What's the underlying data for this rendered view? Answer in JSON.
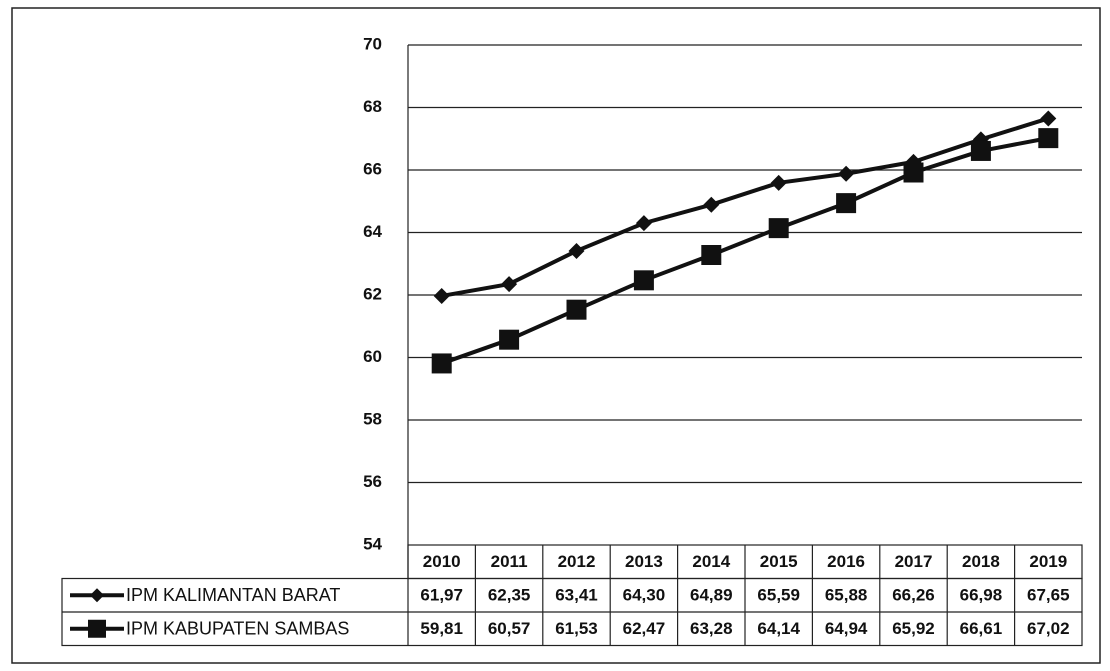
{
  "chart_data": {
    "type": "line",
    "categories": [
      "2010",
      "2011",
      "2012",
      "2013",
      "2014",
      "2015",
      "2016",
      "2017",
      "2018",
      "2019"
    ],
    "series": [
      {
        "name": "IPM KALIMANTAN BARAT",
        "color": "#111111",
        "marker": "diamond",
        "values": [
          61.97,
          62.35,
          63.41,
          64.3,
          64.89,
          65.59,
          65.88,
          66.26,
          66.98,
          67.65
        ],
        "value_labels": [
          "61,97",
          "62,35",
          "63,41",
          "64,30",
          "64,89",
          "65,59",
          "65,88",
          "66,26",
          "66,98",
          "67,65"
        ]
      },
      {
        "name": "IPM KABUPATEN SAMBAS",
        "color": "#111111",
        "marker": "square",
        "values": [
          59.81,
          60.57,
          61.53,
          62.47,
          63.28,
          64.14,
          64.94,
          65.92,
          66.61,
          67.02
        ],
        "value_labels": [
          "59,81",
          "60,57",
          "61,53",
          "62,47",
          "63,28",
          "64,14",
          "64,94",
          "65,92",
          "66,61",
          "67,02"
        ]
      }
    ],
    "ylim": [
      54,
      70
    ],
    "yticks": [
      54,
      56,
      58,
      60,
      62,
      64,
      66,
      68,
      70
    ],
    "grid": true
  }
}
